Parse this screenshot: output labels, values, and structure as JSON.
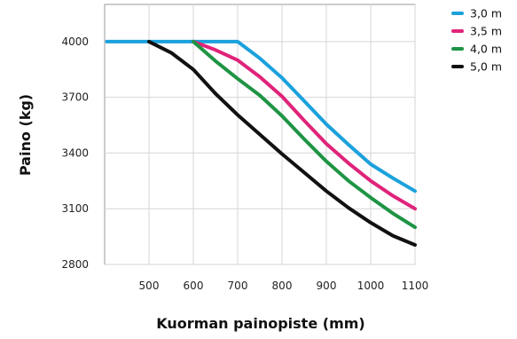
{
  "chart_data": {
    "type": "line",
    "xlabel": "Kuorman painopiste (mm)",
    "ylabel": "Paino (kg)",
    "xlim": [
      400,
      1100
    ],
    "ylim": [
      2800,
      4200
    ],
    "x_ticks": [
      "500",
      "600",
      "700",
      "800",
      "900",
      "1000",
      "1100"
    ],
    "x_tick_values": [
      500,
      600,
      700,
      800,
      900,
      1000,
      1100
    ],
    "y_ticks": [
      "2800",
      "3100",
      "3400",
      "3700",
      "4000"
    ],
    "y_tick_values": [
      2800,
      3100,
      3400,
      3700,
      4000
    ],
    "grid": true,
    "legend_position": "top-right",
    "series": [
      {
        "name": "3,0 m",
        "color": "#1ba1dc",
        "points": [
          [
            405,
            4000
          ],
          [
            700,
            4000
          ],
          [
            750,
            3910
          ],
          [
            800,
            3805
          ],
          [
            850,
            3680
          ],
          [
            900,
            3555
          ],
          [
            950,
            3445
          ],
          [
            1000,
            3340
          ],
          [
            1050,
            3265
          ],
          [
            1100,
            3195
          ]
        ]
      },
      {
        "name": "3,5 m",
        "color": "#e0237a",
        "points": [
          [
            600,
            4000
          ],
          [
            650,
            3955
          ],
          [
            700,
            3900
          ],
          [
            750,
            3810
          ],
          [
            800,
            3705
          ],
          [
            850,
            3575
          ],
          [
            900,
            3450
          ],
          [
            950,
            3345
          ],
          [
            1000,
            3250
          ],
          [
            1050,
            3170
          ],
          [
            1100,
            3100
          ]
        ]
      },
      {
        "name": "4,0 m",
        "color": "#1e9444",
        "points": [
          [
            600,
            4000
          ],
          [
            650,
            3895
          ],
          [
            700,
            3800
          ],
          [
            750,
            3710
          ],
          [
            800,
            3600
          ],
          [
            850,
            3475
          ],
          [
            900,
            3355
          ],
          [
            950,
            3250
          ],
          [
            1000,
            3160
          ],
          [
            1050,
            3075
          ],
          [
            1100,
            3000
          ]
        ]
      },
      {
        "name": "5,0 m",
        "color": "#111111",
        "points": [
          [
            500,
            4000
          ],
          [
            550,
            3940
          ],
          [
            600,
            3850
          ],
          [
            650,
            3720
          ],
          [
            700,
            3605
          ],
          [
            750,
            3500
          ],
          [
            800,
            3395
          ],
          [
            850,
            3295
          ],
          [
            900,
            3195
          ],
          [
            950,
            3105
          ],
          [
            1000,
            3025
          ],
          [
            1050,
            2955
          ],
          [
            1100,
            2905
          ]
        ]
      }
    ]
  }
}
